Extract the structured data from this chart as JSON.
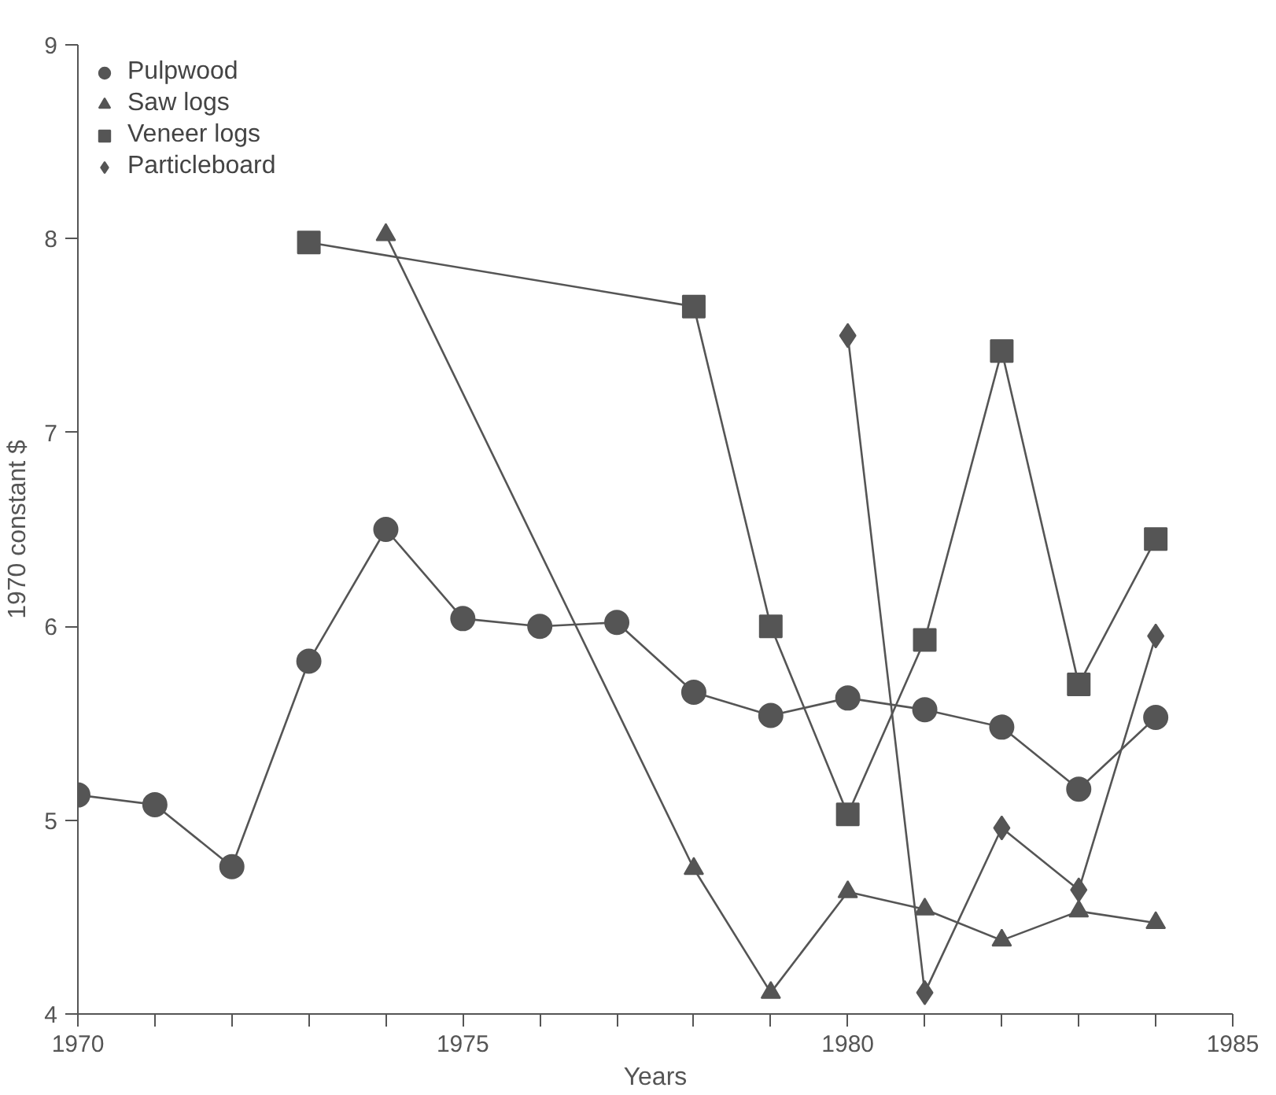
{
  "chart_data": {
    "type": "line",
    "xlabel": "Years",
    "ylabel": "1970 constant $",
    "xlim": [
      1970,
      1985
    ],
    "ylim": [
      4,
      9
    ],
    "xticks": [
      1970,
      {
        "value": 1971,
        "label": null
      },
      {
        "value": 1972,
        "label": null
      },
      {
        "value": 1973,
        "label": null
      },
      {
        "value": 1974,
        "label": null
      },
      1975,
      {
        "value": 1976,
        "label": null
      },
      {
        "value": 1977,
        "label": null
      },
      {
        "value": 1978,
        "label": null
      },
      {
        "value": 1979,
        "label": null
      },
      1980,
      {
        "value": 1981,
        "label": null
      },
      {
        "value": 1982,
        "label": null
      },
      {
        "value": 1983,
        "label": null
      },
      {
        "value": 1984,
        "label": null
      },
      1985
    ],
    "yticks": [
      4,
      5,
      6,
      7,
      8,
      9
    ],
    "grid": false,
    "legend": "top left",
    "series": [
      {
        "name": "Pulpwood",
        "color": "#555555",
        "marker": "circle",
        "x": [
          1970,
          1971,
          1972,
          1973,
          1974,
          1975,
          1976,
          1977,
          1978,
          1979,
          1980,
          1981,
          1982,
          1983,
          1984
        ],
        "values": [
          5.13,
          5.08,
          4.76,
          5.82,
          6.5,
          6.04,
          6.0,
          6.02,
          5.66,
          5.54,
          5.63,
          5.57,
          5.48,
          5.16,
          5.53
        ]
      },
      {
        "name": "Saw logs",
        "color": "#555555",
        "marker": "triangle",
        "x": [
          1974,
          1978,
          1979,
          1980,
          1981,
          1982,
          1983,
          1984
        ],
        "values": [
          8.02,
          4.75,
          4.11,
          4.63,
          4.54,
          4.38,
          4.53,
          4.47
        ]
      },
      {
        "name": "Veneer logs",
        "color": "#555555",
        "marker": "square",
        "x": [
          1973,
          1978,
          1979,
          1980,
          1981,
          1982,
          1983,
          1984
        ],
        "values": [
          7.98,
          7.65,
          6.0,
          5.03,
          5.93,
          7.42,
          5.7,
          6.45
        ]
      },
      {
        "name": "Particleboard",
        "color": "#555555",
        "marker": "diamond",
        "x": [
          1980,
          1981,
          1982,
          1983,
          1984
        ],
        "values": [
          7.5,
          4.11,
          4.96,
          4.64,
          5.95
        ]
      }
    ]
  }
}
